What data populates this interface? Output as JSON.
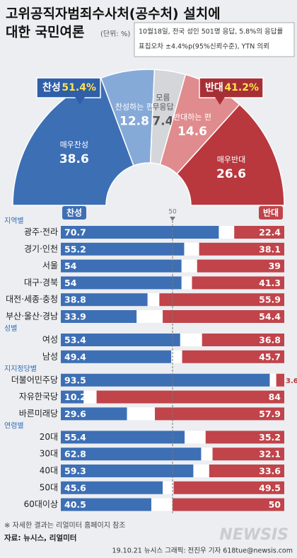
{
  "header": {
    "title": [
      "고위공직자범죄수사처(공수처) 설치에",
      "대한 국민여론"
    ],
    "unit": "(단위: %)",
    "notes": [
      "10월18일, 전국 성인 501명 응답, 5.8%의 응답률",
      "표집오차 ±4.4%p(95%신뢰수준), YTN 의뢰"
    ]
  },
  "chart_data": [
    {
      "type": "donut",
      "categories": [
        [
          "매우찬성"
        ],
        [
          "찬성하는 편"
        ],
        [
          "모름",
          "무응답"
        ],
        [
          "반대하는 편"
        ],
        [
          "매우반대"
        ]
      ],
      "values": [
        38.6,
        12.8,
        7.4,
        14.6,
        26.6
      ],
      "colors": [
        "#3d6fb5",
        "#86aad8",
        "#d4d6da",
        "#e08b8d",
        "#b8383e"
      ],
      "totals": [
        {
          "label": "찬성",
          "value": 51.4,
          "value_label": "51.4%",
          "color": "#2f5fa8"
        },
        {
          "label": "반대",
          "value": 41.2,
          "value_label": "41.2%",
          "color": "#a62f36"
        }
      ]
    },
    {
      "type": "bar",
      "series": [
        {
          "name": "찬성",
          "color": "#3d6fb5"
        },
        {
          "name": "반대",
          "color": "#c0444a"
        }
      ],
      "xlim": [
        0,
        100
      ],
      "xticks": [
        50
      ],
      "groups": [
        {
          "name": "지역별",
          "categories": [
            "광주·전라",
            "경기·인천",
            "서울",
            "대구·경북",
            "대전·세종·충청",
            "부산·울산·경남"
          ],
          "values": [
            [
              70.7,
              22.4
            ],
            [
              55.2,
              38.1
            ],
            [
              54,
              39
            ],
            [
              54,
              41.3
            ],
            [
              38.8,
              55.9
            ],
            [
              33.9,
              54.4
            ]
          ]
        },
        {
          "name": "성별",
          "categories": [
            "여성",
            "남성"
          ],
          "values": [
            [
              53.4,
              36.8
            ],
            [
              49.4,
              45.7
            ]
          ]
        },
        {
          "name": "지지정당별",
          "categories": [
            "더불어민주당",
            "자유한국당",
            "바른미래당"
          ],
          "values": [
            [
              93.5,
              3.6
            ],
            [
              10.2,
              84
            ],
            [
              29.6,
              57.9
            ]
          ]
        },
        {
          "name": "연령별",
          "categories": [
            "20대",
            "30대",
            "40대",
            "50대",
            "60대이상"
          ],
          "values": [
            [
              55.4,
              35.2
            ],
            [
              62.8,
              32.1
            ],
            [
              59.3,
              33.6
            ],
            [
              45.6,
              49.5
            ],
            [
              40.5,
              50
            ]
          ]
        }
      ]
    }
  ],
  "footer": {
    "note": "※ 자세한 결과는 리얼미터 홈페이지 참조",
    "source": "자료: 뉴시스, 리얼미터",
    "credit": "19.10.21 뉴시스 그래픽: 전진우 기자 618tue@newsis.com",
    "watermark": "NEWSIS"
  }
}
